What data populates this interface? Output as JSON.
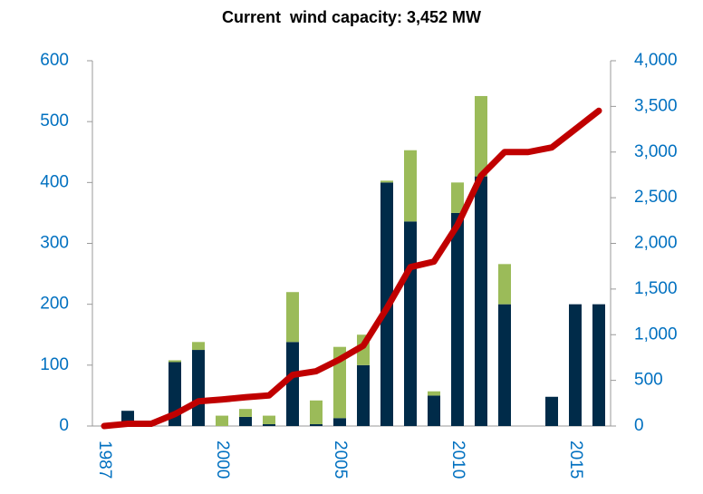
{
  "chart_data": {
    "type": "bar",
    "title": "Current  wind capacity: 3,452 MW",
    "categories": [
      "1987",
      null,
      null,
      null,
      null,
      "2000",
      null,
      null,
      null,
      null,
      "2005",
      null,
      null,
      null,
      null,
      "2010",
      null,
      null,
      null,
      null,
      "2015",
      null
    ],
    "series": [
      {
        "color": "#002b49",
        "values": [
          0,
          25,
          0,
          105,
          125,
          0,
          15,
          3,
          138,
          3,
          13,
          100,
          400,
          336,
          50,
          350,
          410,
          200,
          0,
          48,
          200,
          200
        ]
      },
      {
        "color": "#9bbb59",
        "values": [
          0,
          0,
          0,
          3,
          13,
          17,
          13,
          14,
          82,
          39,
          117,
          50,
          3,
          117,
          7,
          50,
          132,
          66,
          0,
          0,
          0,
          0
        ]
      },
      {
        "type": "line",
        "axis": "y2",
        "color": "#c00000",
        "values": [
          0,
          25,
          25,
          130,
          270,
          290,
          315,
          335,
          560,
          600,
          730,
          880,
          1290,
          1740,
          1800,
          2200,
          2740,
          3000,
          3000,
          3050,
          3250,
          3452
        ]
      }
    ],
    "ylim": [
      0,
      600
    ],
    "yticks": [
      0,
      100,
      200,
      300,
      400,
      500,
      600
    ],
    "y2lim": [
      0,
      4000
    ],
    "y2ticks": [
      0,
      500,
      {
        "value": 1000,
        "label": "1,000"
      },
      {
        "value": 1500,
        "label": "1,500"
      },
      {
        "value": 2000,
        "label": "2,000"
      },
      {
        "value": 2500,
        "label": "2,500"
      },
      {
        "value": 3000,
        "label": "3,000"
      },
      {
        "value": 3500,
        "label": "3,500"
      },
      {
        "value": 4000,
        "label": "4,000"
      }
    ],
    "tick_color": "#0070c0"
  }
}
